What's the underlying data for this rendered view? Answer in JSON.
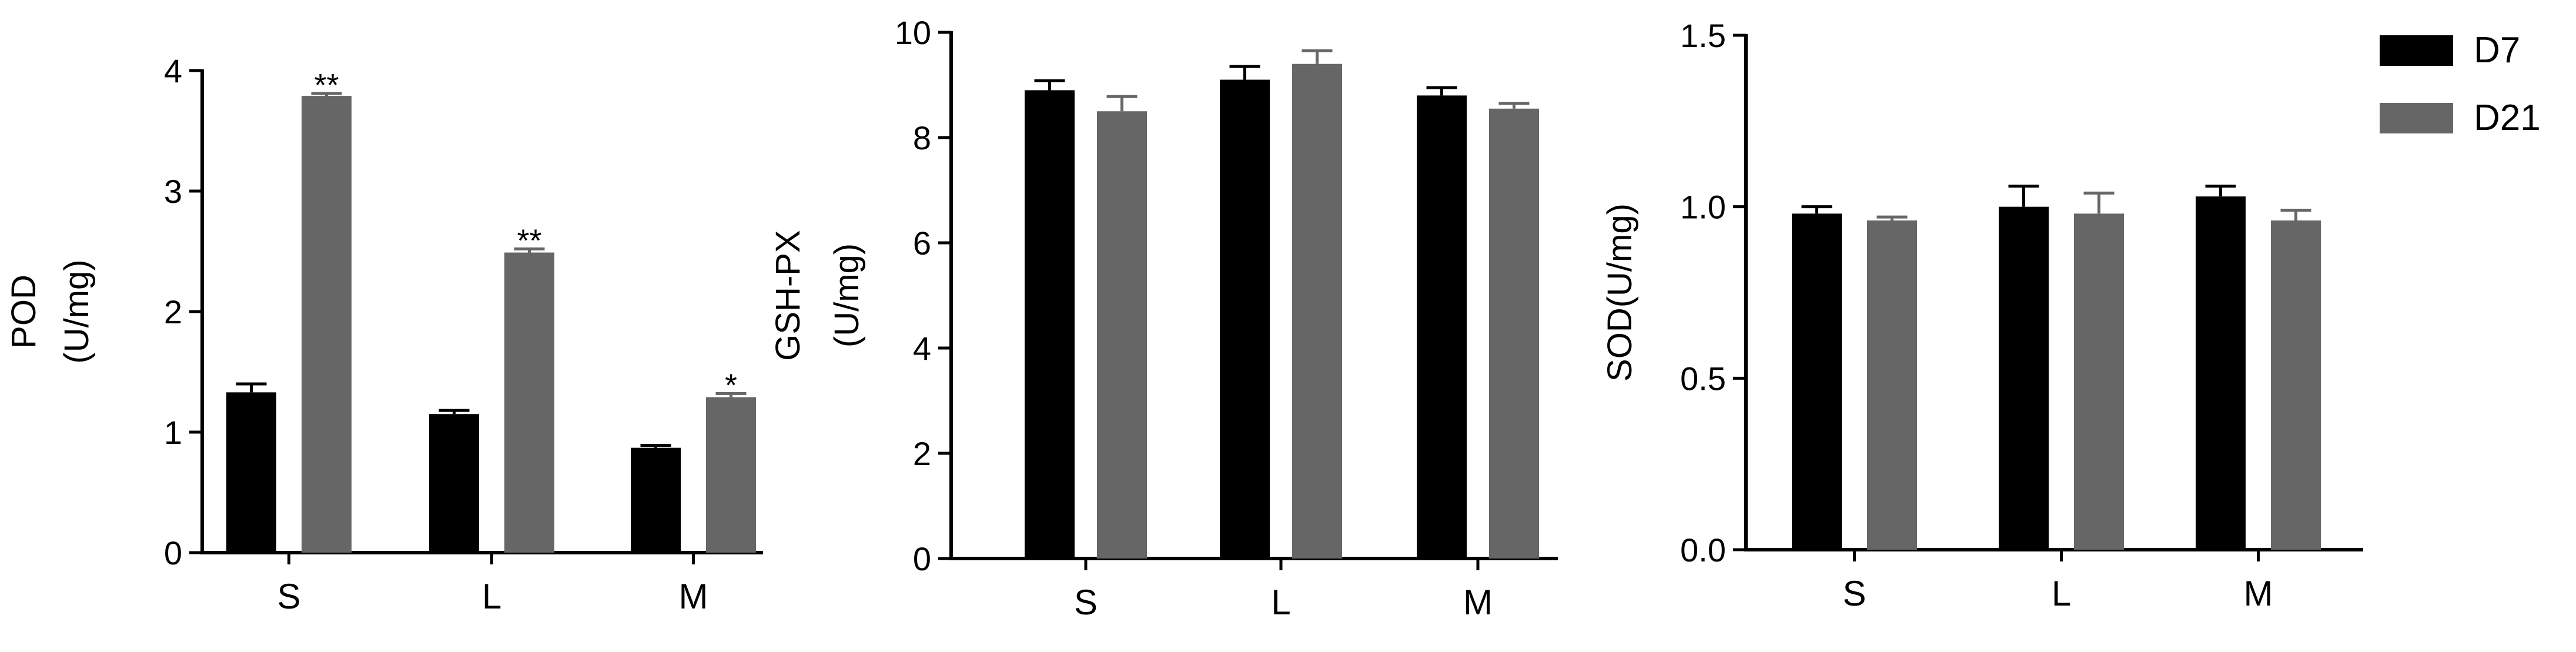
{
  "colors": {
    "D7": "#000000",
    "D21": "#666666",
    "axis": "#000000",
    "background": "#ffffff"
  },
  "legend": {
    "placement": "top-right",
    "items": [
      {
        "name": "D7",
        "color": "#000000"
      },
      {
        "name": "D21",
        "color": "#666666"
      }
    ]
  },
  "chart_data": [
    {
      "type": "bar",
      "ylabel_lines": [
        "POD",
        "(U/mg)"
      ],
      "categories": [
        "S",
        "L",
        "M"
      ],
      "ylim": [
        0,
        4
      ],
      "yticks": [
        0,
        1,
        2,
        3,
        4
      ],
      "ytick_labels": [
        "0",
        "1",
        "2",
        "3",
        "4"
      ],
      "series": [
        {
          "name": "D7",
          "values": [
            1.33,
            1.15,
            0.87
          ],
          "errors": [
            0.07,
            0.03,
            0.02
          ]
        },
        {
          "name": "D21",
          "values": [
            3.79,
            2.49,
            1.29
          ],
          "errors": [
            0.02,
            0.03,
            0.03
          ]
        }
      ],
      "annotations": [
        {
          "series": "D21",
          "category": "S",
          "text": "**"
        },
        {
          "series": "D21",
          "category": "L",
          "text": "**"
        },
        {
          "series": "D21",
          "category": "M",
          "text": "*"
        }
      ],
      "grid": false
    },
    {
      "type": "bar",
      "ylabel_lines": [
        "GSH-PX",
        "(U/mg)"
      ],
      "categories": [
        "S",
        "L",
        "M"
      ],
      "ylim": [
        0,
        10
      ],
      "yticks": [
        0,
        2,
        4,
        6,
        8,
        10
      ],
      "ytick_labels": [
        "0",
        "2",
        "4",
        "6",
        "8",
        "10"
      ],
      "series": [
        {
          "name": "D7",
          "values": [
            8.9,
            9.1,
            8.8
          ],
          "errors": [
            0.18,
            0.25,
            0.15
          ]
        },
        {
          "name": "D21",
          "values": [
            8.5,
            9.4,
            8.55
          ],
          "errors": [
            0.28,
            0.25,
            0.1
          ]
        }
      ],
      "annotations": [],
      "grid": false
    },
    {
      "type": "bar",
      "ylabel_lines": [
        "SOD(U/mg)"
      ],
      "categories": [
        "S",
        "L",
        "M"
      ],
      "ylim": [
        0,
        1.5
      ],
      "yticks": [
        0,
        0.5,
        1.0,
        1.5
      ],
      "ytick_labels": [
        "0.0",
        "0.5",
        "1.0",
        "1.5"
      ],
      "series": [
        {
          "name": "D7",
          "values": [
            0.98,
            1.0,
            1.03
          ],
          "errors": [
            0.02,
            0.06,
            0.03
          ]
        },
        {
          "name": "D21",
          "values": [
            0.96,
            0.98,
            0.96
          ],
          "errors": [
            0.01,
            0.06,
            0.03
          ]
        }
      ],
      "annotations": [],
      "grid": false
    }
  ]
}
